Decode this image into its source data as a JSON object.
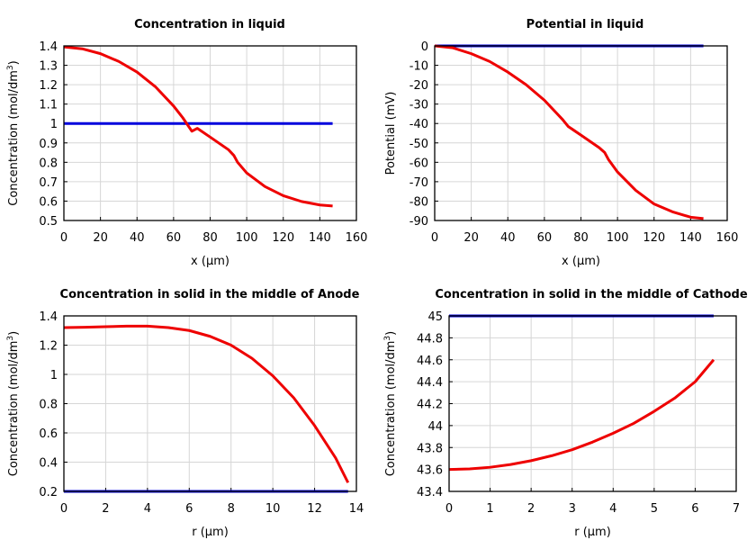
{
  "chart_data": [
    {
      "type": "line",
      "title": "Concentration in liquid",
      "xlabel": "x (µm)",
      "ylabel": "Concentration (mol/dm³)",
      "xlim": [
        0,
        160
      ],
      "ylim": [
        0.5,
        1.4
      ],
      "xticks": [
        "0",
        "20",
        "40",
        "60",
        "80",
        "100",
        "120",
        "140",
        "160"
      ],
      "yticks": [
        "0.5",
        "0.6",
        "0.7",
        "0.8",
        "0.9",
        "1",
        "1.1",
        "1.2",
        "1.3",
        "1.4"
      ],
      "grid": true,
      "series": [
        {
          "color": "#0000dd",
          "x": [
            0,
            147
          ],
          "y": [
            1.0,
            1.0
          ]
        },
        {
          "color": "#ee0000",
          "x": [
            0,
            10,
            20,
            30,
            40,
            50,
            60,
            65,
            70,
            73,
            80,
            90,
            93,
            95,
            100,
            110,
            120,
            130,
            140,
            147
          ],
          "y": [
            1.395,
            1.385,
            1.36,
            1.32,
            1.265,
            1.19,
            1.09,
            1.03,
            0.96,
            0.975,
            0.93,
            0.865,
            0.835,
            0.8,
            0.745,
            0.675,
            0.628,
            0.598,
            0.58,
            0.575
          ]
        }
      ]
    },
    {
      "type": "line",
      "title": "Potential in liquid",
      "xlabel": "x (µm)",
      "ylabel": "Potential (mV)",
      "xlim": [
        0,
        160
      ],
      "ylim": [
        -90,
        0
      ],
      "xticks": [
        "0",
        "20",
        "40",
        "60",
        "80",
        "100",
        "120",
        "140",
        "160"
      ],
      "yticks": [
        "-90",
        "-80",
        "-70",
        "-60",
        "-50",
        "-40",
        "-30",
        "-20",
        "-10",
        "0"
      ],
      "grid": true,
      "series": [
        {
          "color": "#0000dd",
          "x": [
            0,
            147
          ],
          "y": [
            0,
            0
          ]
        },
        {
          "color": "#ee0000",
          "x": [
            0,
            10,
            20,
            30,
            40,
            50,
            60,
            70,
            73,
            80,
            90,
            93,
            95,
            100,
            110,
            120,
            130,
            140,
            147
          ],
          "y": [
            0,
            -1,
            -4,
            -8,
            -13.5,
            -20,
            -28,
            -38,
            -41.5,
            -46,
            -52.5,
            -55,
            -58.5,
            -65,
            -74.5,
            -81.5,
            -85.5,
            -88.3,
            -89
          ]
        }
      ]
    },
    {
      "type": "line",
      "title": "Concentration in solid in the middle of Anode",
      "xlabel": "r (µm)",
      "ylabel": "Concentration (mol/dm³)",
      "xlim": [
        0,
        14
      ],
      "ylim": [
        0.2,
        1.4
      ],
      "xticks": [
        "0",
        "2",
        "4",
        "6",
        "8",
        "10",
        "12",
        "14"
      ],
      "yticks": [
        "0.2",
        "0.4",
        "0.6",
        "0.8",
        "1",
        "1.2",
        "1.4"
      ],
      "grid": true,
      "series": [
        {
          "color": "#0000dd",
          "x": [
            0,
            13.6
          ],
          "y": [
            0.2,
            0.2
          ]
        },
        {
          "color": "#ee0000",
          "x": [
            0,
            1,
            2,
            3,
            4,
            5,
            6,
            7,
            8,
            9,
            10,
            11,
            12,
            13,
            13.6
          ],
          "y": [
            1.32,
            1.322,
            1.326,
            1.33,
            1.33,
            1.32,
            1.3,
            1.26,
            1.2,
            1.11,
            0.99,
            0.84,
            0.65,
            0.43,
            0.26
          ]
        }
      ]
    },
    {
      "type": "line",
      "title": "Concentration in solid in the middle of Cathode",
      "xlabel": "r (µm)",
      "ylabel": "Concentration (mol/dm³)",
      "xlim": [
        0,
        7
      ],
      "ylim": [
        43.4,
        45
      ],
      "xticks": [
        "0",
        "1",
        "2",
        "3",
        "4",
        "5",
        "6",
        "7"
      ],
      "yticks": [
        "43.4",
        "43.6",
        "43.8",
        "44",
        "44.2",
        "44.4",
        "44.6",
        "44.8",
        "45"
      ],
      "grid": true,
      "series": [
        {
          "color": "#0000dd",
          "x": [
            0,
            6.45
          ],
          "y": [
            45,
            45
          ]
        },
        {
          "color": "#ee0000",
          "x": [
            0,
            0.5,
            1,
            1.5,
            2,
            2.5,
            3,
            3.5,
            4,
            4.5,
            5,
            5.5,
            6,
            6.45
          ],
          "y": [
            43.6,
            43.605,
            43.62,
            43.645,
            43.68,
            43.725,
            43.78,
            43.85,
            43.93,
            44.02,
            44.13,
            44.25,
            44.4,
            44.6
          ]
        }
      ]
    }
  ]
}
